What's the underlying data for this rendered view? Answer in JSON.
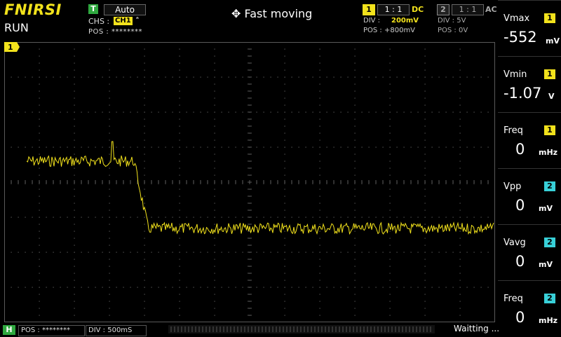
{
  "brand": "FNIRSI",
  "run_state": "RUN",
  "trigger": {
    "badge": "T",
    "mode": "Auto",
    "source_label": "CHS :",
    "source_badge": "CH1",
    "edge_icon": "rising-edge-icon",
    "edge_glyph": "ꜙ",
    "pos_label": "POS : ********"
  },
  "mode_text": "Fast moving",
  "channel1": {
    "badge": "1",
    "ratio": "1 : 1",
    "coupling": "DC",
    "div_label": "DIV :",
    "div_value": "200mV",
    "pos_label": "POS : +800mV",
    "color": "#f2e21c"
  },
  "channel2": {
    "badge": "2",
    "ratio": "1 : 1",
    "coupling": "AC",
    "div_label": "DIV :   5V",
    "pos_label": "POS : 0V",
    "color": "#38d0d8"
  },
  "plot_marker": "1",
  "measurements": [
    {
      "label": "Vmax",
      "channel": "1",
      "value": "-552",
      "unit": "mV"
    },
    {
      "label": "Vmin",
      "channel": "1",
      "value": "-1.07",
      "unit": "V"
    },
    {
      "label": "Freq",
      "channel": "1",
      "value": "0",
      "unit": "mHz"
    },
    {
      "label": "Vpp",
      "channel": "2",
      "value": "0",
      "unit": "mV"
    },
    {
      "label": "Vavg",
      "channel": "2",
      "value": "0",
      "unit": "mV"
    },
    {
      "label": "Freq",
      "channel": "2",
      "value": "0",
      "unit": "mHz"
    }
  ],
  "horizontal": {
    "badge": "H",
    "pos_label": "POS : ********",
    "div_label": "DIV : 500mS"
  },
  "status": "Waitting ...",
  "colors": {
    "trace": "#f2e21c",
    "grid": "#5a5a5a",
    "accent_green": "#2fa83f",
    "ch2": "#38d0d8"
  }
}
